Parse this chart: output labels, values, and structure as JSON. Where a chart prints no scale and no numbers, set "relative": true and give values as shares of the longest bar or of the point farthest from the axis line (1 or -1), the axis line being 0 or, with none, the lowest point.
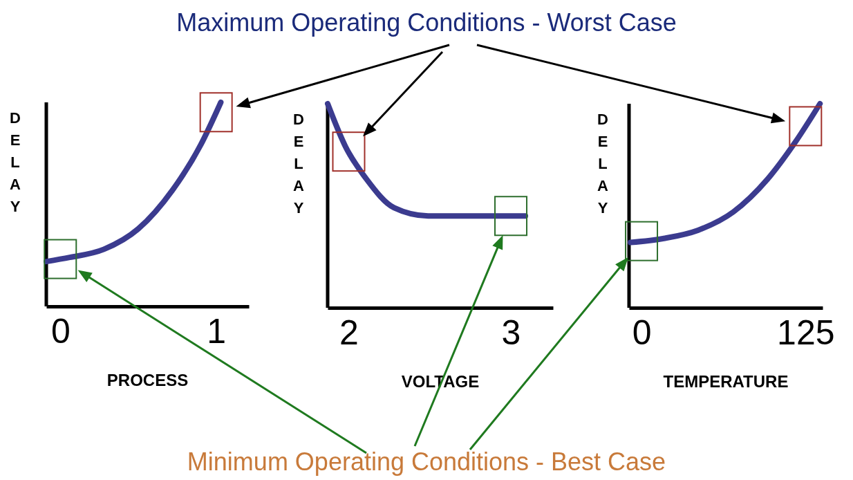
{
  "chart_data": [
    {
      "type": "line",
      "relative": true,
      "ylabel": "DELAY",
      "xlabel": "PROCESS",
      "xlim": [
        -0.09,
        1.21
      ],
      "xticks": [
        0,
        1
      ],
      "tick_labels": "x",
      "series": [
        {
          "color": "#3b3b8f",
          "x": [
            -0.09,
            0.06,
            0.28,
            0.5,
            0.72,
            0.9,
            1.03
          ],
          "values": [
            0.22,
            0.24,
            0.28,
            0.38,
            0.57,
            0.79,
            1
          ]
        }
      ]
    },
    {
      "type": "line",
      "relative": true,
      "ylabel": "DELAY",
      "xlabel": "VOLTAGE",
      "xlim": [
        1.87,
        3.26
      ],
      "xticks": [
        2,
        3
      ],
      "tick_labels": "x",
      "title": "Maximum Operating Conditions - Worst Case",
      "annotations": [
        "Minimum Operating Conditions - Best Case"
      ],
      "series": [
        {
          "color": "#3b3b8f",
          "x": [
            1.87,
            1.98,
            2.11,
            2.28,
            2.49,
            2.74,
            3.09
          ],
          "values": [
            1,
            0.79,
            0.63,
            0.49,
            0.45,
            0.45,
            0.45
          ]
        }
      ]
    },
    {
      "type": "line",
      "relative": true,
      "ylabel": "DELAY",
      "xlabel": "TEMPERATURE",
      "xlim": [
        -9.5,
        138
      ],
      "xticks": [
        0,
        125
      ],
      "tick_labels": "x",
      "series": [
        {
          "color": "#3b3b8f",
          "x": [
            -8.4,
            17,
            43,
            70,
            96,
            117,
            136
          ],
          "values": [
            0.32,
            0.34,
            0.38,
            0.47,
            0.63,
            0.81,
            1
          ]
        }
      ]
    }
  ]
}
